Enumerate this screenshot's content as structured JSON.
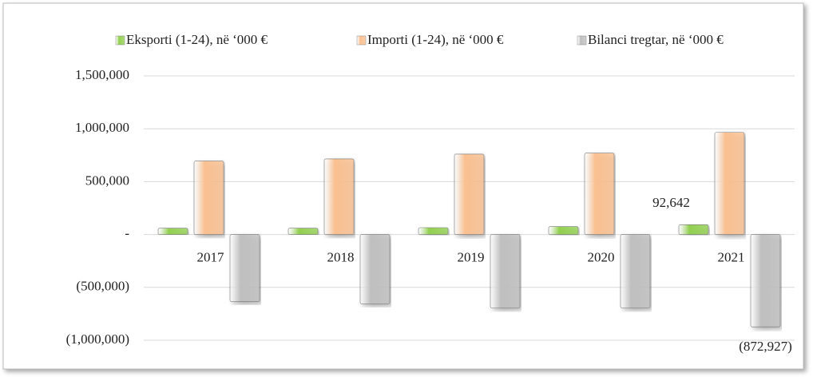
{
  "chart_data": {
    "type": "bar",
    "categories": [
      "2017",
      "2018",
      "2019",
      "2020",
      "2021"
    ],
    "series": [
      {
        "name": "Eksporti (1-24), në ‘000 €",
        "color": "#92d050",
        "values": [
          60000,
          60000,
          65000,
          75000,
          92642
        ],
        "value_labels": [
          null,
          null,
          null,
          null,
          "92,642"
        ]
      },
      {
        "name": "Importi (1-24), në ‘000 €",
        "color": "#fac090",
        "values": [
          695000,
          715000,
          760000,
          770000,
          965569
        ]
      },
      {
        "name": "Bilanci tregtar, në ‘000 €",
        "color": "#bfbfbf",
        "values": [
          -635000,
          -655000,
          -695000,
          -695000,
          -872927
        ],
        "value_labels": [
          null,
          null,
          null,
          null,
          "(872,927)"
        ]
      }
    ],
    "ylim": [
      -1000000,
      1500000
    ],
    "yticks": [
      {
        "value": -1000000,
        "label": "(1,000,000)"
      },
      {
        "value": -500000,
        "label": "(500,000)"
      },
      {
        "value": 0,
        "label": "-"
      },
      {
        "value": 500000,
        "label": "500,000"
      },
      {
        "value": 1000000,
        "label": "1,000,000"
      },
      {
        "value": 1500000,
        "label": "1,500,000"
      }
    ],
    "grid": true
  }
}
